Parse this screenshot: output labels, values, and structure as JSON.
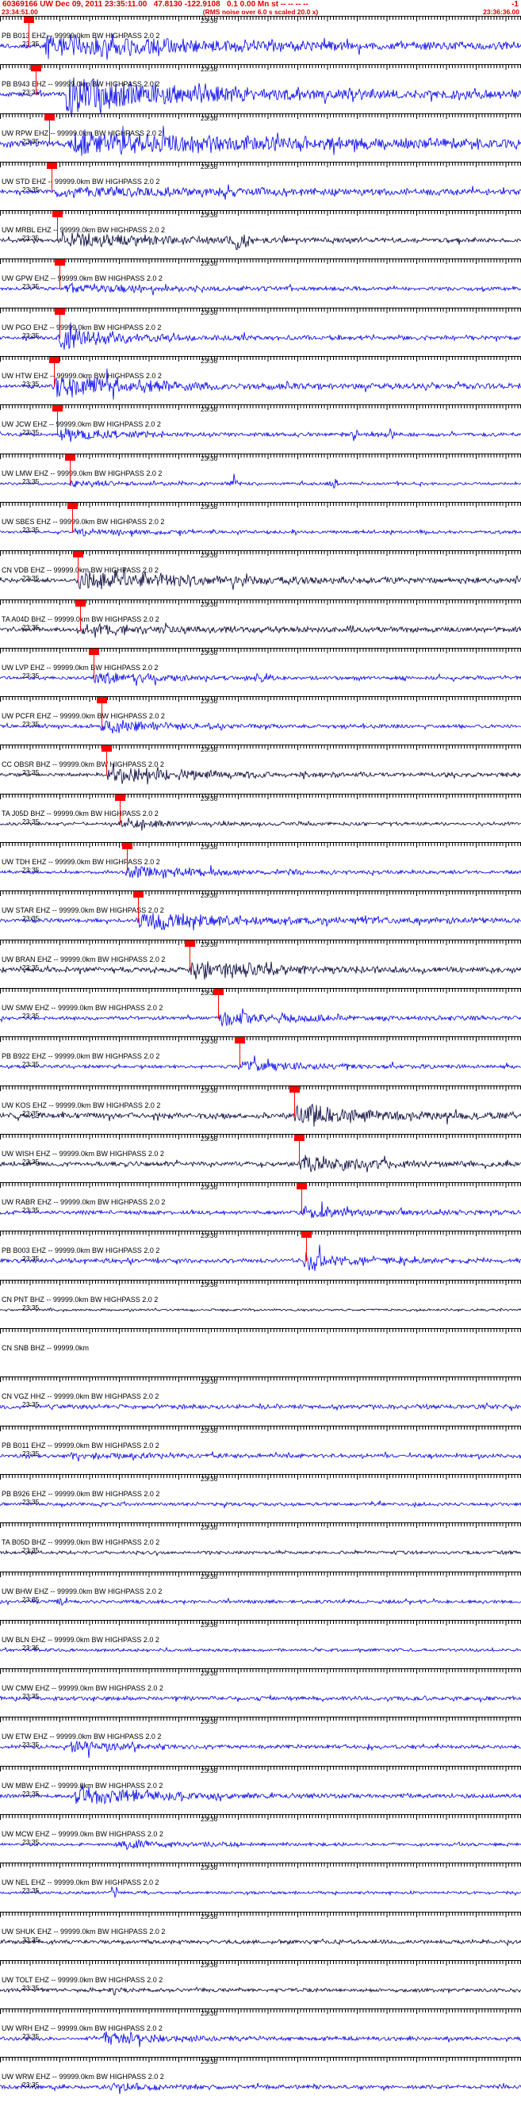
{
  "header": {
    "event_line": "60369166 UW Dec 09, 2011 23:35:11.00   47.8130 -122.9108   0.1 0.00 Mn st -- -- -- --",
    "event_line_right": "-1",
    "start_time": "23:34:51.00",
    "rms_note": "(RMS noise over 6.0 s scaled 20.0 x)",
    "end_time": "23:36:36.00"
  },
  "time_labels": {
    "first": "23:35",
    "second": "23:36"
  },
  "colors": {
    "blue": "#0000ee",
    "dark": "#000038",
    "pick_red": "#ff0000",
    "header_red": "#e00000",
    "text_black": "#000000"
  },
  "traces": [
    {
      "label": "PB B013 EHZ -- 99999.0km BW HIGHPASS 2.0 2",
      "tone": "blue",
      "base_amp": 2.4,
      "burst_pct": 8,
      "burst_amp": 16,
      "decay": 140,
      "tail_amp": 4.5,
      "pick_pct": 4.5,
      "spikes": [
        [
          30,
          4,
          6
        ],
        [
          52,
          3,
          6
        ]
      ],
      "seed": 101
    },
    {
      "label": "PB B943 EHZ -- 99999.0km BW HIGHPASS 2.0 2",
      "tone": "blue",
      "base_amp": 2.4,
      "burst_pct": 12,
      "burst_amp": 26,
      "decay": 110,
      "tail_amp": 5,
      "pick_pct": 6,
      "spikes": [
        [
          40,
          4,
          8
        ]
      ],
      "seed": 202
    },
    {
      "label": "UW RPW EHZ -- 99999.0km BW HIGHPASS 2.0 2",
      "tone": "blue",
      "base_amp": 3,
      "burst_pct": 13,
      "burst_amp": 15,
      "decay": 180,
      "tail_amp": 5.5,
      "pick_pct": 8.5,
      "seed": 303
    },
    {
      "label": "UW STD EHZ -- 99999.0km BW HIGHPASS 2.0 2",
      "tone": "blue",
      "base_amp": 2.2,
      "burst_pct": 10,
      "burst_amp": 7,
      "decay": 260,
      "tail_amp": 3,
      "pick_pct": 9,
      "seed": 404
    },
    {
      "label": "UW MRBL EHZ -- 99999.0km BW HIGHPASS 2.0 2",
      "tone": "dark",
      "base_amp": 2,
      "burst_pct": 11,
      "burst_amp": 10,
      "decay": 120,
      "tail_amp": 2.4,
      "pick_pct": 10,
      "spikes": [
        [
          46,
          7,
          10
        ]
      ],
      "seed": 505
    },
    {
      "label": "UW GPW EHZ -- 99999.0km BW HIGHPASS 2.0 2",
      "tone": "blue",
      "base_amp": 1.8,
      "burst_pct": 12,
      "burst_amp": 6,
      "decay": 130,
      "tail_amp": 2,
      "pick_pct": 10.5,
      "seed": 606
    },
    {
      "label": "UW PGO EHZ -- 99999.0km BW HIGHPASS 2.0 2",
      "tone": "blue",
      "base_amp": 2,
      "burst_pct": 11,
      "burst_amp": 15,
      "decay": 70,
      "tail_amp": 2.4,
      "pick_pct": 10.5,
      "spikes": [
        [
          14,
          6,
          4
        ]
      ],
      "seed": 707
    },
    {
      "label": "UW HTW EHZ -- 99999.0km BW HIGHPASS 2.0 2",
      "tone": "blue",
      "base_amp": 2,
      "burst_pct": 10,
      "burst_amp": 16,
      "decay": 90,
      "tail_amp": 3,
      "pick_pct": 9.5,
      "seed": 808
    },
    {
      "label": "UW JCW EHZ -- 99999.0km BW HIGHPASS 2.0 2",
      "tone": "blue",
      "base_amp": 1.8,
      "burst_pct": 11,
      "burst_amp": 9,
      "decay": 70,
      "tail_amp": 2,
      "pick_pct": 10,
      "spikes": [
        [
          68,
          6,
          3
        ],
        [
          75,
          4,
          3
        ]
      ],
      "seed": 909
    },
    {
      "label": "UW LMW EHZ -- 99999.0km BW HIGHPASS 2.0 2",
      "tone": "blue",
      "base_amp": 1.4,
      "burst_pct": 13,
      "burst_amp": 4,
      "decay": 90,
      "tail_amp": 1.5,
      "pick_pct": 12.5,
      "spikes": [
        [
          45,
          6,
          3
        ],
        [
          64,
          5,
          3
        ]
      ],
      "seed": 1010
    },
    {
      "label": "UW SBES EHZ -- 99999.0km BW HIGHPASS 2.0 2",
      "tone": "blue",
      "base_amp": 1.5,
      "burst_pct": 13.5,
      "burst_amp": 5,
      "decay": 80,
      "tail_amp": 1.6,
      "pick_pct": 13,
      "seed": 1111
    },
    {
      "label": "CN VDB EHZ -- 99999.0km BW HIGHPASS 2.0 2",
      "tone": "dark",
      "base_amp": 2,
      "burst_pct": 14.5,
      "burst_amp": 11,
      "decay": 160,
      "tail_amp": 3,
      "pick_pct": 14,
      "seed": 1212
    },
    {
      "label": "TA A04D BHZ -- 99999.0km BW HIGHPASS 2.0 2",
      "tone": "dark",
      "base_amp": 2.2,
      "burst_pct": 15,
      "burst_amp": 6,
      "decay": 160,
      "tail_amp": 2.6,
      "pick_pct": 14.5,
      "seed": 1313
    },
    {
      "label": "UW LVP EHZ -- 99999.0km BW HIGHPASS 2.0 2",
      "tone": "blue",
      "base_amp": 1.6,
      "burst_pct": 17.5,
      "burst_amp": 9,
      "decay": 70,
      "tail_amp": 2,
      "pick_pct": 17,
      "spikes": [
        [
          50,
          6,
          3
        ]
      ],
      "seed": 1414
    },
    {
      "label": "UW PCFR EHZ -- 99999.0km BW HIGHPASS 2.0 2",
      "tone": "blue",
      "base_amp": 1.8,
      "burst_pct": 19,
      "burst_amp": 10,
      "decay": 70,
      "tail_amp": 2,
      "pick_pct": 18.5,
      "seed": 1515
    },
    {
      "label": "CC OBSR BHZ -- 99999.0km BW HIGHPASS 2.0 2",
      "tone": "dark",
      "base_amp": 2,
      "burst_pct": 20,
      "burst_amp": 11,
      "decay": 100,
      "tail_amp": 2.2,
      "pick_pct": 19.5,
      "seed": 1616
    },
    {
      "label": "TA J05D BHZ -- 99999.0km BW HIGHPASS 2.0 2",
      "tone": "dark",
      "base_amp": 1.6,
      "burst_pct": 22.5,
      "burst_amp": 6,
      "decay": 70,
      "tail_amp": 1.8,
      "pick_pct": 22,
      "seed": 1717
    },
    {
      "label": "UW TDH EHZ -- 99999.0km BW HIGHPASS 2.0 2",
      "tone": "blue",
      "base_amp": 1.6,
      "burst_pct": 24,
      "burst_amp": 9,
      "decay": 80,
      "tail_amp": 2,
      "pick_pct": 23.5,
      "seed": 1818
    },
    {
      "label": "UW STAR EHZ -- 99999.0km BW HIGHPASS 2.0 2",
      "tone": "blue",
      "base_amp": 2.2,
      "burst_pct": 26,
      "burst_amp": 13,
      "decay": 100,
      "tail_amp": 3,
      "pick_pct": 25.5,
      "spikes": [
        [
          55,
          5,
          3
        ]
      ],
      "seed": 1919
    },
    {
      "label": "UW BRAN EHZ -- 99999.0km BW HIGHPASS 2.0 2",
      "tone": "dark",
      "base_amp": 2.8,
      "burst_pct": 36,
      "burst_amp": 14,
      "decay": 80,
      "tail_amp": 3,
      "pick_pct": 35.5,
      "seed": 2020
    },
    {
      "label": "UW SMW EHZ -- 99999.0km BW HIGHPASS 2.0 2",
      "tone": "blue",
      "base_amp": 2,
      "burst_pct": 41.5,
      "burst_amp": 10,
      "decay": 80,
      "tail_amp": 2.4,
      "pick_pct": 41,
      "seed": 2121
    },
    {
      "label": "PB B922 EHZ -- 99999.0km BW HIGHPASS 2.0 2",
      "tone": "blue",
      "base_amp": 1.7,
      "burst_pct": 45.5,
      "burst_amp": 9,
      "decay": 70,
      "tail_amp": 2,
      "pick_pct": 45,
      "seed": 2222
    },
    {
      "label": "UW KOS EHZ -- 99999.0km BW HIGHPASS 2.0 2",
      "tone": "dark",
      "base_amp": 3.2,
      "burst_pct": 56,
      "burst_amp": 15,
      "decay": 90,
      "tail_amp": 3.2,
      "pick_pct": 55.5,
      "seed": 2323
    },
    {
      "label": "UW WISH EHZ -- 99999.0km BW HIGHPASS 2.0 2",
      "tone": "dark",
      "base_amp": 2.4,
      "burst_pct": 57,
      "burst_amp": 12,
      "decay": 85,
      "tail_amp": 2.6,
      "pick_pct": 56.5,
      "seed": 2424
    },
    {
      "label": "UW RABR EHZ -- 99999.0km BW HIGHPASS 2.0 2",
      "tone": "blue",
      "base_amp": 2,
      "burst_pct": 57.5,
      "burst_amp": 8,
      "decay": 70,
      "tail_amp": 2.2,
      "pick_pct": 57,
      "seed": 2525
    },
    {
      "label": "PB B003 EHZ -- 99999.0km BW HIGHPASS 2.0 2",
      "tone": "blue",
      "base_amp": 2.4,
      "burst_pct": 58,
      "burst_amp": 13,
      "decay": 55,
      "tail_amp": 2.4,
      "pick_pct": 57.8,
      "seed": 2626
    },
    {
      "label": "CN PNT BHZ -- 99999.0km BW HIGHPASS 2.0 2",
      "tone": "dark",
      "base_amp": 1.2,
      "burst_pct": null,
      "burst_amp": 0,
      "decay": 1,
      "tail_amp": 1.2,
      "pick_pct": null,
      "seed": 2727
    },
    {
      "label": "CN SNB BHZ -- 99999.0km",
      "tone": "blue",
      "base_amp": 0,
      "burst_pct": null,
      "burst_amp": 0,
      "decay": 1,
      "tail_amp": 0,
      "pick_pct": null,
      "seed": 2828,
      "has_wave": false,
      "show_times": false
    },
    {
      "label": "CN VGZ HHZ -- 99999.0km BW HIGHPASS 2.0 2",
      "tone": "blue",
      "base_amp": 2.4,
      "burst_pct": null,
      "burst_amp": 0,
      "decay": 1,
      "tail_amp": 2.4,
      "pick_pct": null,
      "seed": 2929
    },
    {
      "label": "PB B011 EHZ -- 99999.0km BW HIGHPASS 2.0 2",
      "tone": "blue",
      "base_amp": 2,
      "burst_pct": 13,
      "burst_amp": 4,
      "decay": 120,
      "tail_amp": 2,
      "pick_pct": null,
      "seed": 3030
    },
    {
      "label": "PB B926 EHZ -- 99999.0km BW HIGHPASS 2.0 2",
      "tone": "blue",
      "base_amp": 1.8,
      "burst_pct": null,
      "burst_amp": 0,
      "decay": 1,
      "tail_amp": 1.8,
      "pick_pct": null,
      "seed": 3131
    },
    {
      "label": "TA B05D BHZ -- 99999.0km BW HIGHPASS 2.0 2",
      "tone": "dark",
      "base_amp": 1.8,
      "burst_pct": null,
      "burst_amp": 0,
      "decay": 1,
      "tail_amp": 1.8,
      "pick_pct": null,
      "seed": 3232
    },
    {
      "label": "UW BHW EHZ -- 99999.0km BW HIGHPASS 2.0 2",
      "tone": "blue",
      "base_amp": 1.8,
      "burst_pct": null,
      "burst_amp": 0,
      "decay": 1,
      "tail_amp": 1.8,
      "pick_pct": null,
      "spikes": [
        [
          12,
          6,
          4
        ]
      ],
      "seed": 3333
    },
    {
      "label": "UW BLN EHZ -- 99999.0km BW HIGHPASS 2.0 2",
      "tone": "blue",
      "base_amp": 1.6,
      "burst_pct": null,
      "burst_amp": 0,
      "decay": 1,
      "tail_amp": 1.6,
      "pick_pct": null,
      "seed": 3434
    },
    {
      "label": "UW CMW EHZ -- 99999.0km BW HIGHPASS 2.0 2",
      "tone": "blue",
      "base_amp": 2.2,
      "burst_pct": null,
      "burst_amp": 0,
      "decay": 1,
      "tail_amp": 2.2,
      "pick_pct": null,
      "seed": 3535
    },
    {
      "label": "UW ETW EHZ -- 99999.0km BW HIGHPASS 2.0 2",
      "tone": "blue",
      "base_amp": 1.8,
      "burst_pct": 13,
      "burst_amp": 8,
      "decay": 70,
      "tail_amp": 2,
      "pick_pct": null,
      "seed": 3636
    },
    {
      "label": "UW MBW EHZ -- 99999.0km BW HIGHPASS 2.0 2",
      "tone": "blue",
      "base_amp": 2,
      "burst_pct": 14,
      "burst_amp": 14,
      "decay": 90,
      "tail_amp": 2.2,
      "pick_pct": null,
      "seed": 3737
    },
    {
      "label": "UW MCW EHZ -- 99999.0km BW HIGHPASS 2.0 2",
      "tone": "blue",
      "base_amp": 1.6,
      "burst_pct": 21,
      "burst_amp": 7,
      "decay": 60,
      "tail_amp": 1.8,
      "pick_pct": null,
      "seed": 3838
    },
    {
      "label": "UW NEL EHZ -- 99999.0km BW HIGHPASS 2.0 2",
      "tone": "blue",
      "base_amp": 1.5,
      "burst_pct": null,
      "burst_amp": 0,
      "decay": 1,
      "tail_amp": 1.5,
      "pick_pct": null,
      "spikes": [
        [
          22,
          8,
          3
        ]
      ],
      "seed": 3939
    },
    {
      "label": "UW SHUK EHZ -- 99999.0km BW HIGHPASS 2.0 2",
      "tone": "dark",
      "base_amp": 2.2,
      "burst_pct": null,
      "burst_amp": 0,
      "decay": 1,
      "tail_amp": 2.2,
      "pick_pct": null,
      "seed": 4040
    },
    {
      "label": "UW TOLT EHZ -- 99999.0km BW HIGHPASS 2.0 2",
      "tone": "dark",
      "base_amp": 2,
      "burst_pct": null,
      "burst_amp": 0,
      "decay": 1,
      "tail_amp": 2,
      "pick_pct": null,
      "spikes": [
        [
          22,
          5,
          4
        ]
      ],
      "seed": 4141
    },
    {
      "label": "UW WRH EHZ -- 99999.0km BW HIGHPASS 2.0 2",
      "tone": "blue",
      "base_amp": 2,
      "burst_pct": 19,
      "burst_amp": 8,
      "decay": 70,
      "tail_amp": 2.2,
      "pick_pct": null,
      "seed": 4242
    },
    {
      "label": "UW WRW EHZ -- 99999.0km BW HIGHPASS 2.0 2",
      "tone": "blue",
      "base_amp": 2,
      "burst_pct": 20,
      "burst_amp": 5,
      "decay": 80,
      "tail_amp": 2,
      "pick_pct": null,
      "seed": 4343
    }
  ]
}
